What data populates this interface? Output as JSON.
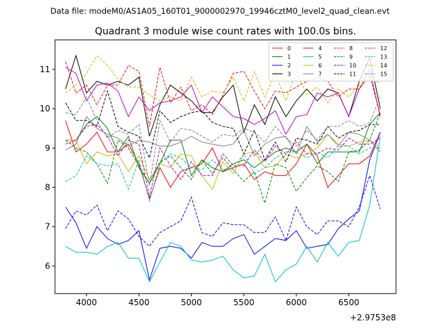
{
  "header": {
    "datafile": "Data file: modeM0/AS1A05_160T01_9000002970_19946cztM0_level2_quad_clean.evt"
  },
  "chart_data": {
    "type": "line",
    "title": "Quadrant 3 module wise count rates with 100.0s bins.",
    "xlabel": "",
    "ylabel": "",
    "x_offset_label": "+2.9753e8",
    "x_offset_value": 297530000,
    "xlim": [
      3700,
      6950
    ],
    "ylim": [
      5.3,
      11.75
    ],
    "xticks": [
      4000,
      4500,
      5000,
      5500,
      6000,
      6500
    ],
    "xtick_labels": [
      "4000",
      "4500",
      "5000",
      "5500",
      "6000",
      "6500"
    ],
    "yticks": [
      6,
      7,
      8,
      9,
      10,
      11
    ],
    "ytick_labels": [
      "6",
      "7",
      "8",
      "9",
      "10",
      "11"
    ],
    "grid": false,
    "legend_position": "upper-right",
    "x": [
      3800,
      3900,
      4000,
      4100,
      4200,
      4300,
      4400,
      4500,
      4600,
      4700,
      4800,
      4900,
      5000,
      5100,
      5200,
      5300,
      5400,
      5500,
      5600,
      5700,
      5800,
      5900,
      6000,
      6100,
      6200,
      6300,
      6400,
      6500,
      6600,
      6700,
      6800
    ],
    "series": [
      {
        "name": "0",
        "color": "#ff0000",
        "dash": "solid",
        "values": [
          9.7,
          8.9,
          9.1,
          9.4,
          8.9,
          8.9,
          9.1,
          8.6,
          7.7,
          8.5,
          8.0,
          8.4,
          8.5,
          8.6,
          9.0,
          8.4,
          8.5,
          8.6,
          8.2,
          8.4,
          8.3,
          8.3,
          8.6,
          9.1,
          8.8,
          8.0,
          8.3,
          8.6,
          8.6,
          8.8,
          9.4
        ]
      },
      {
        "name": "1",
        "color": "#008000",
        "dash": "solid",
        "values": [
          9.2,
          9.2,
          9.6,
          9.8,
          9.5,
          8.9,
          9.3,
          8.5,
          8.1,
          8.6,
          9.2,
          9.2,
          8.3,
          8.7,
          8.5,
          8.4,
          8.6,
          8.7,
          8.5,
          8.7,
          8.9,
          9.0,
          8.9,
          9.1,
          8.6,
          8.9,
          8.9,
          8.9,
          8.9,
          9.6,
          9.9
        ]
      },
      {
        "name": "2",
        "color": "#0000ff",
        "dash": "solid",
        "values": [
          7.5,
          7.1,
          6.45,
          7.0,
          6.7,
          6.55,
          6.65,
          6.9,
          5.65,
          6.45,
          6.5,
          6.45,
          6.2,
          6.6,
          6.5,
          6.5,
          6.7,
          6.8,
          6.3,
          6.5,
          6.7,
          6.65,
          6.9,
          6.45,
          6.5,
          6.55,
          6.95,
          7.2,
          7.4,
          8.7,
          9.4
        ]
      },
      {
        "name": "3",
        "color": "#000000",
        "dash": "solid",
        "values": [
          10.5,
          11.35,
          10.4,
          10.7,
          10.6,
          10.7,
          10.6,
          10.8,
          9.3,
          10.1,
          10.6,
          10.4,
          10.2,
          9.9,
          9.9,
          10.3,
          10.6,
          9.4,
          10.1,
          9.6,
          10.3,
          9.8,
          10.2,
          10.5,
          10.2,
          10.5,
          10.4,
          9.8,
          10.7,
          11.3,
          10.0
        ]
      },
      {
        "name": "4",
        "color": "#bf00bf",
        "dash": "solid",
        "values": [
          11.05,
          10.9,
          10.2,
          10.6,
          10.65,
          10.45,
          9.8,
          10.3,
          9.95,
          10.15,
          10.2,
          10.3,
          10.6,
          9.9,
          10.3,
          10.05,
          9.8,
          9.75,
          9.6,
          9.75,
          9.95,
          9.35,
          9.8,
          9.85,
          10.4,
          10.3,
          10.4,
          9.8,
          10.5,
          11.0,
          9.8
        ]
      },
      {
        "name": "5",
        "color": "#00bfbf",
        "dash": "solid",
        "values": [
          6.5,
          6.35,
          6.35,
          6.3,
          6.5,
          6.6,
          6.2,
          6.2,
          5.6,
          6.1,
          6.6,
          6.5,
          6.15,
          6.1,
          6.15,
          6.25,
          5.9,
          5.7,
          5.75,
          6.3,
          5.6,
          5.9,
          6.05,
          6.5,
          6.1,
          6.6,
          6.25,
          6.6,
          6.65,
          7.55,
          9.3
        ]
      },
      {
        "name": "6",
        "color": "#bfbf00",
        "dash": "solid",
        "values": [
          9.2,
          9.2,
          8.6,
          8.9,
          8.8,
          8.85,
          8.4,
          8.8,
          8.2,
          8.6,
          8.5,
          8.85,
          8.8,
          8.3,
          7.95,
          8.65,
          8.35,
          8.85,
          8.9,
          8.5,
          8.55,
          8.85,
          8.75,
          8.85,
          9.0,
          9.35,
          9.1,
          9.05,
          9.15,
          9.2,
          9.0
        ]
      },
      {
        "name": "7",
        "color": "#808080",
        "dash": "solid",
        "values": [
          8.95,
          9.1,
          9.8,
          9.5,
          9.35,
          9.25,
          9.05,
          9.2,
          9.15,
          9.05,
          9.05,
          9.15,
          9.3,
          9.15,
          9.1,
          9.05,
          9.1,
          9.45,
          8.8,
          9.1,
          9.25,
          9.3,
          8.85,
          9.55,
          9.15,
          9.35,
          9.05,
          9.4,
          9.35,
          9.2,
          8.9
        ]
      },
      {
        "name": "8",
        "color": "#ff0000",
        "dash": "dashed",
        "values": [
          11.2,
          10.4,
          10.6,
          10.1,
          10.6,
          10.6,
          11.1,
          10.95,
          9.55,
          11.05,
          10.15,
          10.55,
          9.95,
          10.1,
          9.85,
          10.35,
          10.9,
          10.95,
          10.45,
          10.0,
          10.45,
          10.4,
          10.55,
          10.7,
          10.8,
          10.7,
          10.3,
          10.5,
          10.5,
          10.85,
          9.85
        ]
      },
      {
        "name": "9",
        "color": "#008000",
        "dash": "dashed",
        "values": [
          9.2,
          9.0,
          8.9,
          8.6,
          8.1,
          9.2,
          9.0,
          8.55,
          8.1,
          8.65,
          8.8,
          8.5,
          8.2,
          8.7,
          8.35,
          8.75,
          8.45,
          8.15,
          8.4,
          7.6,
          8.6,
          8.5,
          7.9,
          8.25,
          8.55,
          8.4,
          8.15,
          8.9,
          8.95,
          9.2,
          9.9
        ]
      },
      {
        "name": "10",
        "color": "#0000ff",
        "dash": "dashed",
        "values": [
          6.95,
          7.4,
          7.3,
          7.55,
          6.9,
          7.4,
          7.2,
          6.75,
          6.5,
          6.85,
          7.0,
          7.15,
          7.75,
          6.85,
          6.75,
          7.1,
          7.05,
          7.05,
          6.85,
          6.85,
          7.25,
          6.65,
          7.5,
          7.0,
          6.8,
          7.15,
          7.15,
          7.0,
          7.5,
          8.3,
          7.45
        ]
      },
      {
        "name": "11",
        "color": "#000000",
        "dash": "dashed",
        "values": [
          10.15,
          9.7,
          9.7,
          9.55,
          10.45,
          9.55,
          9.4,
          9.3,
          8.75,
          9.95,
          9.65,
          9.8,
          9.9,
          9.95,
          9.65,
          9.55,
          9.5,
          8.85,
          9.45,
          8.7,
          9.15,
          8.65,
          9.25,
          9.2,
          9.1,
          9.55,
          9.25,
          9.4,
          9.45,
          9.6,
          9.6
        ]
      },
      {
        "name": "12",
        "color": "#bf00bf",
        "dash": "dashed",
        "values": [
          9.1,
          9.2,
          9.55,
          9.6,
          9.3,
          8.8,
          9.2,
          9.1,
          7.75,
          9.0,
          8.55,
          8.2,
          8.65,
          8.3,
          8.3,
          8.85,
          8.55,
          8.55,
          8.95,
          8.65,
          9.05,
          8.85,
          9.15,
          8.85,
          8.85,
          9.0,
          8.95,
          9.25,
          9.1,
          9.1,
          9.25
        ]
      },
      {
        "name": "13",
        "color": "#00bfbf",
        "dash": "dashed",
        "values": [
          8.15,
          8.3,
          8.8,
          8.6,
          8.55,
          8.6,
          7.95,
          8.7,
          7.65,
          8.6,
          8.85,
          8.75,
          8.5,
          8.45,
          8.7,
          8.45,
          8.5,
          8.85,
          8.35,
          8.5,
          8.75,
          8.9,
          8.9,
          8.75,
          8.9,
          8.75,
          9.05,
          9.05,
          8.85,
          9.0,
          9.0
        ]
      },
      {
        "name": "14",
        "color": "#bfbf00",
        "dash": "dashed",
        "values": [
          10.4,
          10.6,
          10.9,
          11.35,
          11.1,
          10.75,
          10.55,
          10.55,
          10.35,
          10.2,
          10.3,
          10.2,
          10.8,
          10.3,
          10.45,
          10.4,
          10.8,
          10.2,
          10.95,
          10.3,
          10.9,
          10.2,
          10.95,
          10.35,
          10.55,
          10.15,
          10.5,
          10.3,
          10.6,
          10.75,
          10.65
        ]
      },
      {
        "name": "15",
        "color": "#808080",
        "dash": "dashed",
        "values": [
          9.9,
          9.85,
          10.3,
          9.7,
          9.25,
          9.45,
          9.35,
          9.6,
          8.05,
          9.7,
          9.15,
          9.5,
          9.45,
          9.3,
          9.15,
          9.35,
          9.3,
          9.5,
          9.4,
          9.15,
          9.55,
          9.25,
          9.05,
          9.45,
          9.2,
          9.55,
          9.55,
          9.7,
          9.55,
          9.65,
          10.3
        ]
      }
    ]
  }
}
